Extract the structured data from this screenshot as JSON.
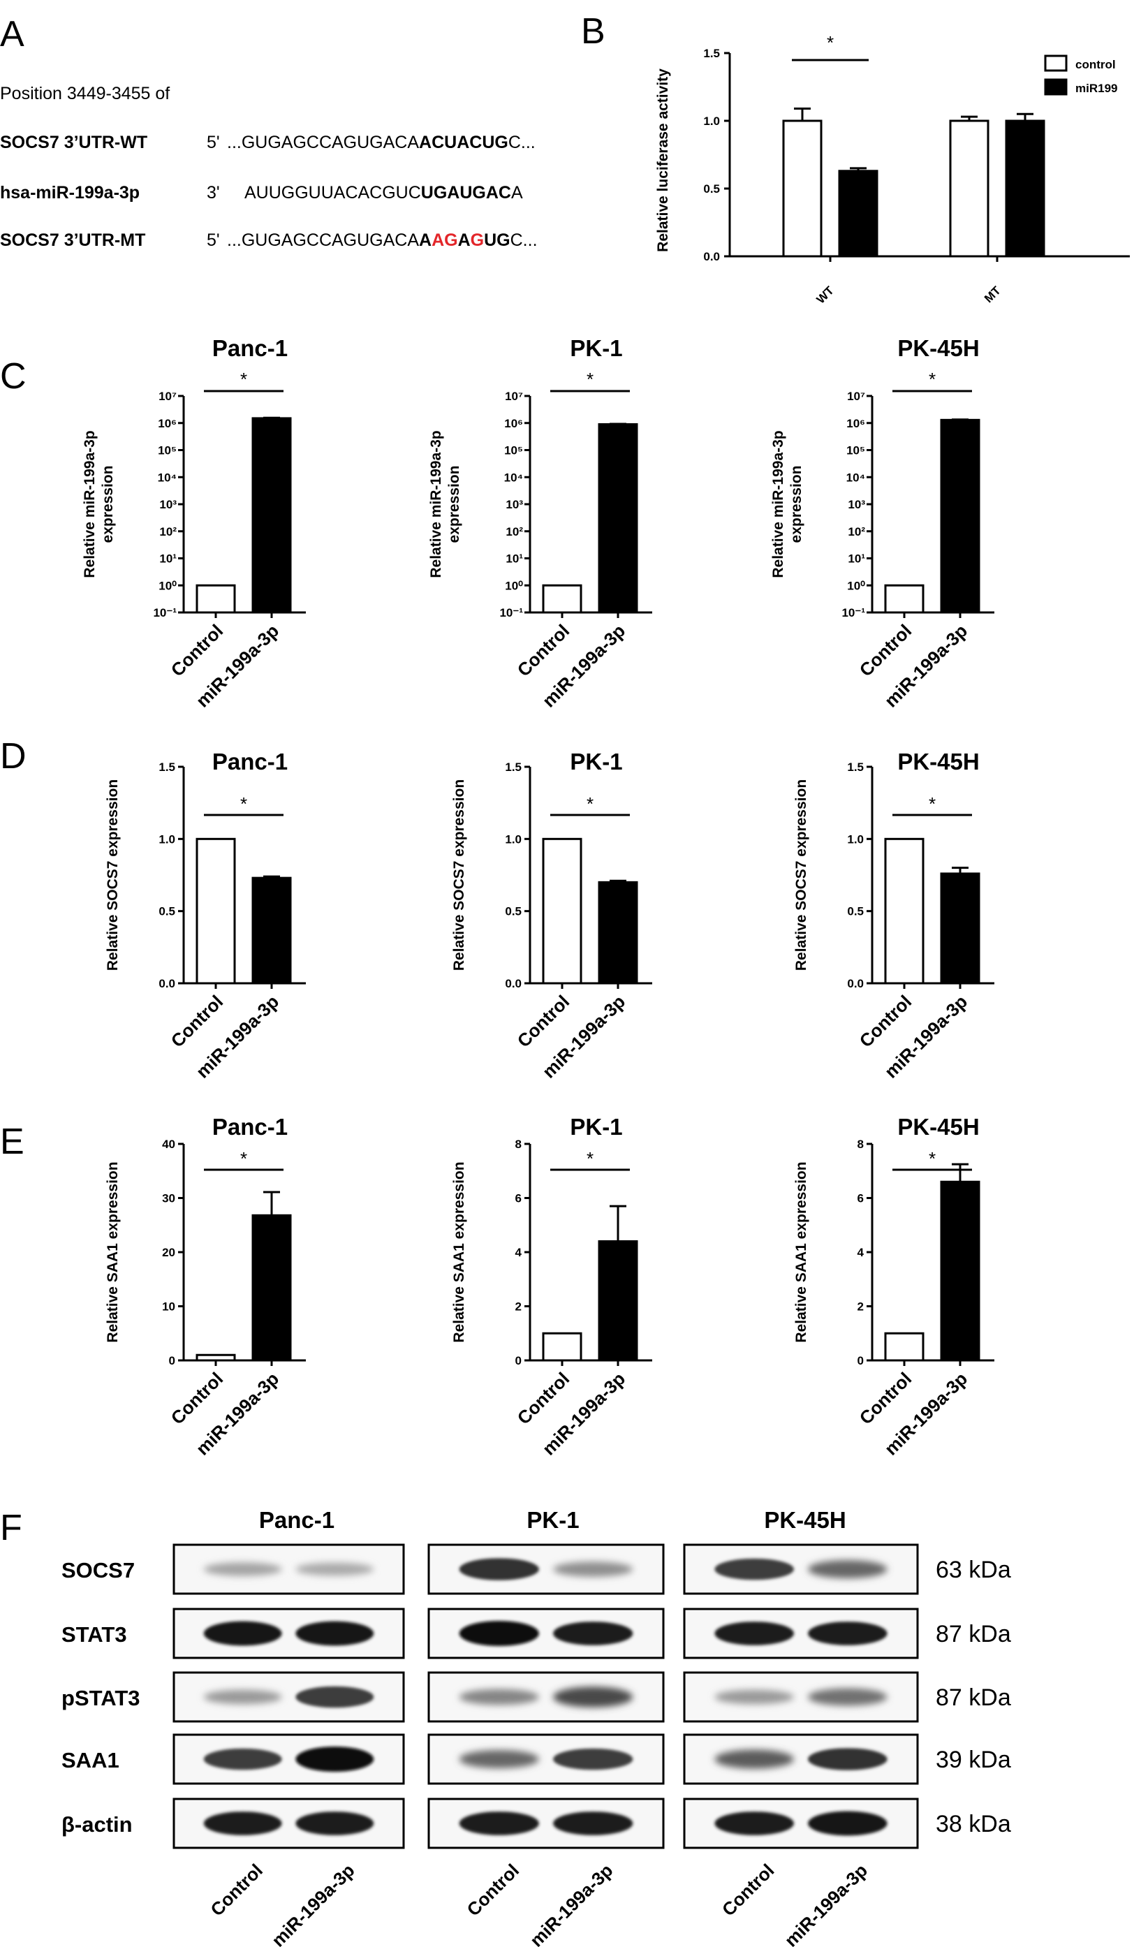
{
  "panels": {
    "A": {
      "letter": "A",
      "position_text": "Position 3449-3455 of",
      "rows": [
        {
          "name": "SOCS7 3’UTR-WT",
          "prime": "5'",
          "segments": [
            {
              "text": "...GUGAGCCAGUGACA",
              "style": "normal"
            },
            {
              "text": "ACUACUG",
              "style": "bold"
            },
            {
              "text": "C...",
              "style": "normal"
            }
          ]
        },
        {
          "name": "hsa-miR-199a-3p",
          "prime": "3'",
          "segments": [
            {
              "text": "AUUGGUUACACGUC",
              "style": "normal"
            },
            {
              "text": "UGAUGAC",
              "style": "bold"
            },
            {
              "text": "A",
              "style": "normal"
            }
          ]
        },
        {
          "name": "SOCS7 3’UTR-MT",
          "prime": "5'",
          "segments": [
            {
              "text": "...GUGAGCCAGUGACA",
              "style": "normal"
            },
            {
              "text": "A",
              "style": "bold"
            },
            {
              "text": "AG",
              "style": "red"
            },
            {
              "text": "A",
              "style": "bold"
            },
            {
              "text": "G",
              "style": "red"
            },
            {
              "text": "UG",
              "style": "bold"
            },
            {
              "text": "C...",
              "style": "normal"
            }
          ]
        }
      ]
    },
    "B": {
      "letter": "B"
    },
    "C": {
      "letter": "C"
    },
    "D": {
      "letter": "D"
    },
    "E": {
      "letter": "E"
    },
    "F": {
      "letter": "F"
    }
  },
  "chart_data": [
    {
      "id": "B",
      "type": "bar",
      "title": "",
      "ylabel": "Relative luciferase activity",
      "ylim": [
        0,
        1.5
      ],
      "yticks": [
        "0.0",
        "0.5",
        "1.0",
        "1.5"
      ],
      "categories": [
        "WT",
        "MT"
      ],
      "series": [
        {
          "name": "control",
          "fill": "#ffffff",
          "values": [
            1.0,
            1.0
          ],
          "errors": [
            0.09,
            0.03
          ]
        },
        {
          "name": "miR199",
          "fill": "#000000",
          "values": [
            0.63,
            1.0
          ],
          "errors": [
            0.02,
            0.05
          ]
        }
      ],
      "significance": [
        {
          "label": "*",
          "category": "WT"
        }
      ],
      "legend": "top-right"
    },
    {
      "id": "C1",
      "type": "bar",
      "scale": "log",
      "title": "Panc-1",
      "ylabel": [
        "Relative miR-199a-3p",
        "expression"
      ],
      "ylim": [
        0.1,
        10000000
      ],
      "categories": [
        "Control",
        "miR-199a-3p"
      ],
      "values": [
        1,
        1500000
      ],
      "errors": [
        0,
        60000
      ],
      "significance": "*"
    },
    {
      "id": "C2",
      "type": "bar",
      "scale": "log",
      "title": "PK-1",
      "ylabel": [
        "Relative miR-199a-3p",
        "expression"
      ],
      "ylim": [
        0.1,
        10000000
      ],
      "categories": [
        "Control",
        "miR-199a-3p"
      ],
      "values": [
        1,
        900000
      ],
      "errors": [
        0,
        30000
      ],
      "significance": "*"
    },
    {
      "id": "C3",
      "type": "bar",
      "scale": "log",
      "title": "PK-45H",
      "ylabel": [
        "Relative miR-199a-3p",
        "expression"
      ],
      "ylim": [
        0.1,
        10000000
      ],
      "categories": [
        "Control",
        "miR-199a-3p"
      ],
      "values": [
        1,
        1300000
      ],
      "errors": [
        0,
        50000
      ],
      "significance": "*"
    },
    {
      "id": "D1",
      "type": "bar",
      "title": "Panc-1",
      "ylabel": [
        "Relative SOCS7 expression"
      ],
      "ylim": [
        0,
        1.5
      ],
      "yticks": [
        "0.0",
        "0.5",
        "1.0",
        "1.5"
      ],
      "categories": [
        "Control",
        "miR-199a-3p"
      ],
      "values": [
        1.0,
        0.73
      ],
      "errors": [
        0,
        0.01
      ],
      "significance": "*"
    },
    {
      "id": "D2",
      "type": "bar",
      "title": "PK-1",
      "ylabel": [
        "Relative SOCS7 expression"
      ],
      "ylim": [
        0,
        1.5
      ],
      "yticks": [
        "0.0",
        "0.5",
        "1.0",
        "1.5"
      ],
      "categories": [
        "Control",
        "miR-199a-3p"
      ],
      "values": [
        1.0,
        0.7
      ],
      "errors": [
        0,
        0.01
      ],
      "significance": "*"
    },
    {
      "id": "D3",
      "type": "bar",
      "title": "PK-45H",
      "ylabel": [
        "Relative SOCS7 expression"
      ],
      "ylim": [
        0,
        1.5
      ],
      "yticks": [
        "0.0",
        "0.5",
        "1.0",
        "1.5"
      ],
      "categories": [
        "Control",
        "miR-199a-3p"
      ],
      "values": [
        1.0,
        0.76
      ],
      "errors": [
        0,
        0.04
      ],
      "significance": "*"
    },
    {
      "id": "E1",
      "type": "bar",
      "title": "Panc-1",
      "ylabel": [
        "Relative SAA1 expression"
      ],
      "ylim": [
        0,
        40
      ],
      "yticks": [
        "0",
        "10",
        "20",
        "30",
        "40"
      ],
      "categories": [
        "Control",
        "miR-199a-3p"
      ],
      "values": [
        1,
        26.8
      ],
      "errors": [
        0,
        4.3
      ],
      "significance": "*"
    },
    {
      "id": "E2",
      "type": "bar",
      "title": "PK-1",
      "ylabel": [
        "Relative SAA1 expression"
      ],
      "ylim": [
        0,
        8
      ],
      "yticks": [
        "0",
        "2",
        "4",
        "6",
        "8"
      ],
      "categories": [
        "Control",
        "miR-199a-3p"
      ],
      "values": [
        1,
        4.4
      ],
      "errors": [
        0,
        1.3
      ],
      "significance": "*"
    },
    {
      "id": "E3",
      "type": "bar",
      "title": "PK-45H",
      "ylabel": [
        "Relative SAA1 expression"
      ],
      "ylim": [
        0,
        8
      ],
      "yticks": [
        "0",
        "2",
        "4",
        "6",
        "8"
      ],
      "categories": [
        "Control",
        "miR-199a-3p"
      ],
      "values": [
        1,
        6.6
      ],
      "errors": [
        0,
        0.65
      ],
      "significance": "*"
    }
  ],
  "western_blot": {
    "cell_lines": [
      "Panc-1",
      "PK-1",
      "PK-45H"
    ],
    "proteins": [
      {
        "name": "SOCS7",
        "kda": "63 kDa",
        "levels": [
          [
            0.25,
            0.22
          ],
          [
            0.8,
            0.35
          ],
          [
            0.75,
            0.55
          ]
        ]
      },
      {
        "name": "STAT3",
        "kda": "87 kDa",
        "levels": [
          [
            0.95,
            0.95
          ],
          [
            1.0,
            0.9
          ],
          [
            0.9,
            0.9
          ]
        ]
      },
      {
        "name": "pSTAT3",
        "kda": "87 kDa",
        "levels": [
          [
            0.3,
            0.75
          ],
          [
            0.4,
            0.7
          ],
          [
            0.3,
            0.5
          ]
        ]
      },
      {
        "name": "SAA1",
        "kda": "39 kDa",
        "levels": [
          [
            0.75,
            1.0
          ],
          [
            0.55,
            0.75
          ],
          [
            0.6,
            0.8
          ]
        ]
      },
      {
        "name": "β-actin",
        "kda": "38 kDa",
        "levels": [
          [
            0.9,
            0.9
          ],
          [
            0.9,
            0.9
          ],
          [
            0.9,
            0.95
          ]
        ]
      }
    ],
    "lane_labels": [
      "Control",
      "miR-199a-3p"
    ]
  }
}
